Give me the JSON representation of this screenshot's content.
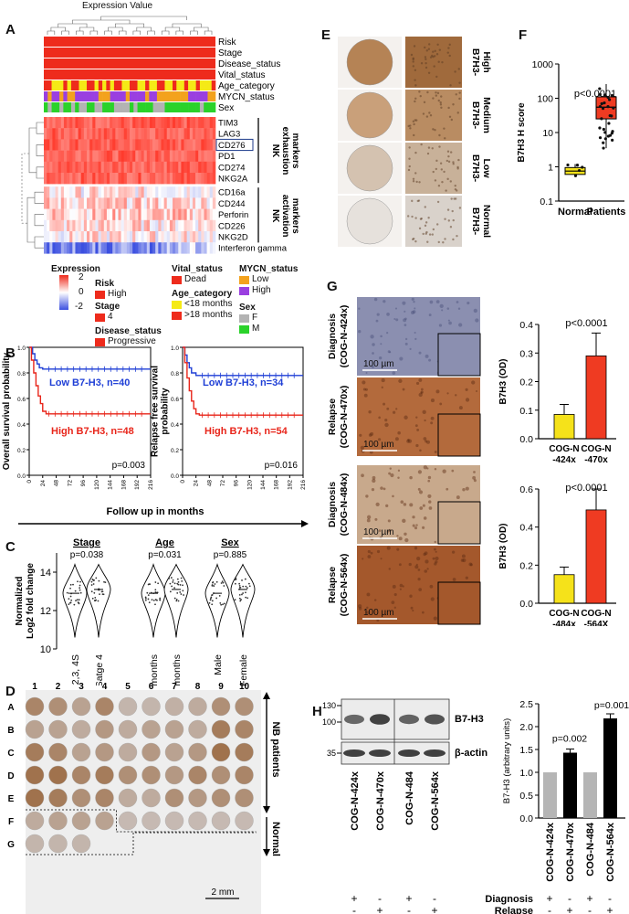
{
  "panelA": {
    "letter": "A",
    "title": "Expression Value",
    "annotation_rows": [
      "Risk",
      "Stage",
      "Disease_status",
      "Vital_status",
      "Age_category",
      "MYCN_status",
      "Sex"
    ],
    "exhaustion_genes": [
      "TIM3",
      "LAG3",
      "CD276",
      "PD1",
      "CD274",
      "NKG2A"
    ],
    "activation_genes": [
      "CD16a",
      "CD244",
      "Perforin",
      "CD226",
      "NKG2D",
      "Interferon gamma"
    ],
    "exhaustion_group": [
      "NK",
      "exhaustion",
      "markers"
    ],
    "activation_group": [
      "NK",
      "activation",
      "markers"
    ],
    "legend": {
      "expression_title": "Expression",
      "scale_ticks": [
        "2",
        "0",
        "-2"
      ],
      "risk_title": "Risk",
      "risk_high": "High",
      "stage_title": "Stage",
      "stage_4": "4",
      "disease_title": "Disease_status",
      "disease_prog": "Progressive",
      "vital_title": "Vital_status",
      "vital_dead": "Dead",
      "age_title": "Age_category",
      "age_lt": "<18 months",
      "age_gt": ">18 months",
      "mycn_title": "MYCN_status",
      "mycn_low": "Low",
      "mycn_high": "High",
      "sex_title": "Sex",
      "sex_f": "F",
      "sex_m": "M"
    },
    "colors": {
      "red": "#ee2b1c",
      "yellow": "#f5ea16",
      "purple": "#9a3fe0",
      "orange": "#f3a21d",
      "green": "#2ad22a",
      "grey": "#b3b3b3",
      "blue": "#1f3fd6"
    }
  },
  "panelB": {
    "letter": "B",
    "xlabel": "Follow up in months",
    "xticks": [
      "0",
      "24",
      "48",
      "72",
      "96",
      "120",
      "144",
      "168",
      "192",
      "216"
    ],
    "plots": [
      {
        "ylabel": [
          "Overall survival probability"
        ],
        "low_label": "Low B7-H3, n=40",
        "high_label": "High B7-H3, n=48",
        "pvalue": "p=0.003"
      },
      {
        "ylabel": [
          "Relapse free survival",
          "probability"
        ],
        "low_label": "Low B7-H3, n=34",
        "high_label": "High B7-H3, n=54",
        "pvalue": "p=0.016"
      }
    ],
    "yticks": [
      "0.0",
      "0.2",
      "0.4",
      "0.6",
      "0.8",
      "1.0"
    ]
  },
  "panelC": {
    "letter": "C",
    "ylabel": [
      "Normalized",
      "Log2 fold change"
    ],
    "yticks": [
      "10",
      "12",
      "14"
    ],
    "groups": [
      {
        "title": "Stage",
        "pvalue": "p=0.038",
        "cats": [
          "Stages 2,3, 4S",
          "Satge 4"
        ]
      },
      {
        "title": "Age",
        "pvalue": "p=0.031",
        "cats": [
          "<18 months",
          ">18 months"
        ]
      },
      {
        "title": "Sex",
        "pvalue": "p=0.885",
        "cats": [
          "Male",
          "Female"
        ]
      }
    ]
  },
  "panelD": {
    "letter": "D",
    "cols": [
      "1",
      "2",
      "3",
      "4",
      "5",
      "6",
      "7",
      "8",
      "9",
      "10"
    ],
    "rows": [
      "A",
      "B",
      "C",
      "D",
      "E",
      "F",
      "G"
    ],
    "nb_label": "NB patients",
    "normal_label": "Normal",
    "scale": "2 mm"
  },
  "panelE": {
    "letter": "E",
    "labels": [
      [
        "B7H3-",
        "High"
      ],
      [
        "B7H3-",
        "Medium"
      ],
      [
        "B7H3-",
        "Low"
      ],
      [
        "B7H3-",
        "Normal"
      ]
    ]
  },
  "panelF": {
    "letter": "F",
    "ylabel": "B7H3 H score",
    "pvalue": "p<0.0001",
    "categories": [
      "Normal",
      "Patients"
    ],
    "yticks": [
      "0.1",
      "1",
      "10",
      "100",
      "1000"
    ]
  },
  "panelG": {
    "letter": "G",
    "row_labels": [
      [
        "Diagnosis",
        "(COG-N-424x)"
      ],
      [
        "Relapse",
        "(COG-N-470x)"
      ],
      [
        "Diagnosis",
        "(COG-N-484x)"
      ],
      [
        "Relapse",
        "(COG-N-564x)"
      ]
    ],
    "scale": "100 µm",
    "ylabel": "B7H3 (OD)",
    "pvalue": "p<0.0001",
    "chart1_cats": [
      [
        "COG-N",
        "-424x"
      ],
      [
        "COG-N",
        "-470x"
      ]
    ],
    "chart2_cats": [
      [
        "COG-N",
        "-484x"
      ],
      [
        "COG-N",
        "-564X"
      ]
    ],
    "chart1_yticks": [
      "0.0",
      "0.1",
      "0.2",
      "0.3",
      "0.4"
    ],
    "chart2_yticks": [
      "0.0",
      "0.2",
      "0.4",
      "0.6"
    ]
  },
  "panelH": {
    "letter": "H",
    "mw": [
      "130",
      "100",
      "35"
    ],
    "bands": [
      "B7-H3",
      "β-actin"
    ],
    "lanes": [
      "COG-N-424x",
      "COG-N-470x",
      "COG-N-484",
      "COG-N-564x"
    ],
    "diagnosis": "Diagnosis",
    "relapse": "Relapse",
    "diag_marks": [
      "+",
      "-",
      "+",
      "-"
    ],
    "rel_marks": [
      "-",
      "+",
      "-",
      "+"
    ],
    "ylabel": "B7-H3 (arbitrary units)",
    "yticks": [
      "0.0",
      "0.5",
      "1.0",
      "1.5",
      "2.0",
      "2.5"
    ],
    "p1": "p=0.002",
    "p2": "p=0.001"
  },
  "chart_data": [
    {
      "type": "line",
      "title": "",
      "xlabel": "Follow up in months",
      "ylabel": "Overall survival probability",
      "xlim": [
        0,
        216
      ],
      "ylim": [
        0,
        1
      ],
      "series": [
        {
          "name": "Low B7-H3, n=40",
          "x": [
            0,
            6,
            10,
            14,
            18,
            24,
            30,
            216
          ],
          "y": [
            1.0,
            0.95,
            0.9,
            0.87,
            0.84,
            0.83,
            0.83,
            0.83
          ]
        },
        {
          "name": "High B7-H3, n=48",
          "x": [
            0,
            4,
            8,
            12,
            16,
            20,
            24,
            30,
            216
          ],
          "y": [
            1.0,
            0.9,
            0.8,
            0.7,
            0.62,
            0.56,
            0.5,
            0.48,
            0.48
          ]
        }
      ]
    },
    {
      "type": "line",
      "title": "",
      "xlabel": "Follow up in months",
      "ylabel": "Relapse free survival probability",
      "xlim": [
        0,
        216
      ],
      "ylim": [
        0,
        1
      ],
      "series": [
        {
          "name": "Low B7-H3, n=34",
          "x": [
            0,
            4,
            8,
            12,
            16,
            24,
            36,
            216
          ],
          "y": [
            1.0,
            0.94,
            0.88,
            0.84,
            0.8,
            0.78,
            0.78,
            0.78
          ]
        },
        {
          "name": "High B7-H3, n=54",
          "x": [
            0,
            4,
            8,
            12,
            16,
            20,
            24,
            30,
            216
          ],
          "y": [
            1.0,
            0.88,
            0.76,
            0.66,
            0.58,
            0.52,
            0.48,
            0.47,
            0.47
          ]
        }
      ]
    },
    {
      "type": "bar",
      "title": "",
      "ylabel": "B7H3 (OD)",
      "categories": [
        "COG-N-424x",
        "COG-N-470x"
      ],
      "values": [
        0.085,
        0.29
      ],
      "errors": [
        0.035,
        0.08
      ],
      "ylim": [
        0,
        0.4
      ]
    },
    {
      "type": "bar",
      "title": "",
      "ylabel": "B7H3 (OD)",
      "categories": [
        "COG-N-484x",
        "COG-N-564X"
      ],
      "values": [
        0.15,
        0.49
      ],
      "errors": [
        0.04,
        0.11
      ],
      "ylim": [
        0,
        0.6
      ]
    },
    {
      "type": "bar",
      "title": "",
      "ylabel": "B7-H3 (arbitrary units)",
      "categories": [
        "COG-N-424x",
        "COG-N-470x",
        "COG-N-484",
        "COG-N-564x"
      ],
      "values": [
        1.0,
        1.43,
        1.0,
        2.18
      ],
      "errors": [
        0,
        0.08,
        0,
        0.1
      ],
      "ylim": [
        0,
        2.5
      ]
    },
    {
      "type": "scatter",
      "title": "",
      "ylabel": "B7H3 H score",
      "yscale": "log",
      "categories": [
        "Normal",
        "Patients"
      ],
      "box": [
        {
          "q1": 0.6,
          "median": 0.75,
          "q3": 0.95,
          "min": 0.5,
          "max": 1.2
        },
        {
          "q1": 25,
          "median": 55,
          "q3": 110,
          "min": 3.5,
          "max": 260
        }
      ],
      "ylim": [
        0.1,
        1000
      ]
    }
  ]
}
